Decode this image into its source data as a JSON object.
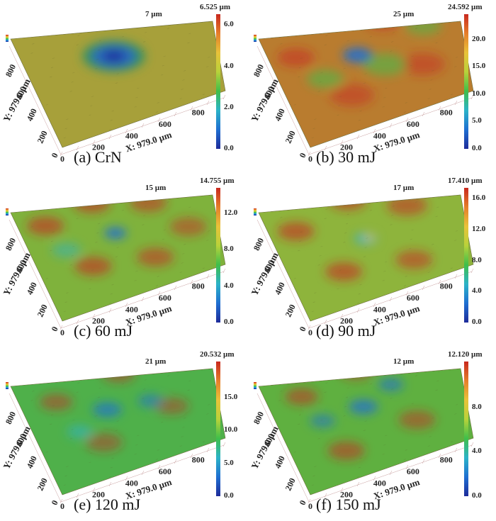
{
  "axes": {
    "x_label": "X: 979.0 µm",
    "y_label": "Y: 979.0 µm",
    "x_ticks": [
      "0",
      "200",
      "400",
      "600",
      "800"
    ],
    "y_ticks": [
      "0",
      "200",
      "400",
      "600",
      "800"
    ]
  },
  "panels": [
    {
      "caption": "(a) CrN",
      "z_top": "7 µm",
      "cb_max": "6.525 µm",
      "cb_ticks": [
        "6.0",
        "4.0",
        "2.0",
        "0.0"
      ],
      "cb_fractions": [
        0.92,
        0.613,
        0.307,
        0.0
      ]
    },
    {
      "caption": "(b) 30 mJ",
      "z_top": "25 µm",
      "cb_max": "24.592 µm",
      "cb_ticks": [
        "20.0",
        "15.0",
        "10.0",
        "5.0",
        "0.0"
      ],
      "cb_fractions": [
        0.813,
        0.61,
        0.407,
        0.203,
        0.0
      ]
    },
    {
      "caption": "(c) 60 mJ",
      "z_top": "15 µm",
      "cb_max": "14.755 µm",
      "cb_ticks": [
        "12.0",
        "8.0",
        "4.0",
        "0.0"
      ],
      "cb_fractions": [
        0.813,
        0.542,
        0.271,
        0.0
      ]
    },
    {
      "caption": "(d) 90 mJ",
      "z_top": "17 µm",
      "cb_max": "17.410 µm",
      "cb_ticks": [
        "16.0",
        "12.0",
        "8.0",
        "4.0",
        "0.0"
      ],
      "cb_fractions": [
        0.919,
        0.689,
        0.46,
        0.23,
        0.0
      ]
    },
    {
      "caption": "(e) 120 mJ",
      "z_top": "21 µm",
      "cb_max": "20.532 µm",
      "cb_ticks": [
        "15.0",
        "10.0",
        "5.0",
        "0.0"
      ],
      "cb_fractions": [
        0.731,
        0.487,
        0.244,
        0.0
      ]
    },
    {
      "caption": "(f) 150 mJ",
      "z_top": "12 µm",
      "cb_max": "12.120 µm",
      "cb_ticks": [
        "8.0",
        "4.0",
        "0.0"
      ],
      "cb_fractions": [
        0.66,
        0.33,
        0.0
      ]
    }
  ],
  "colors": {
    "colormap": [
      "#1e2b9a",
      "#1f6fd1",
      "#2cb3c8",
      "#3fbf4a",
      "#b9d23a",
      "#e9c23a",
      "#e57e2a",
      "#c8281e"
    ]
  }
}
